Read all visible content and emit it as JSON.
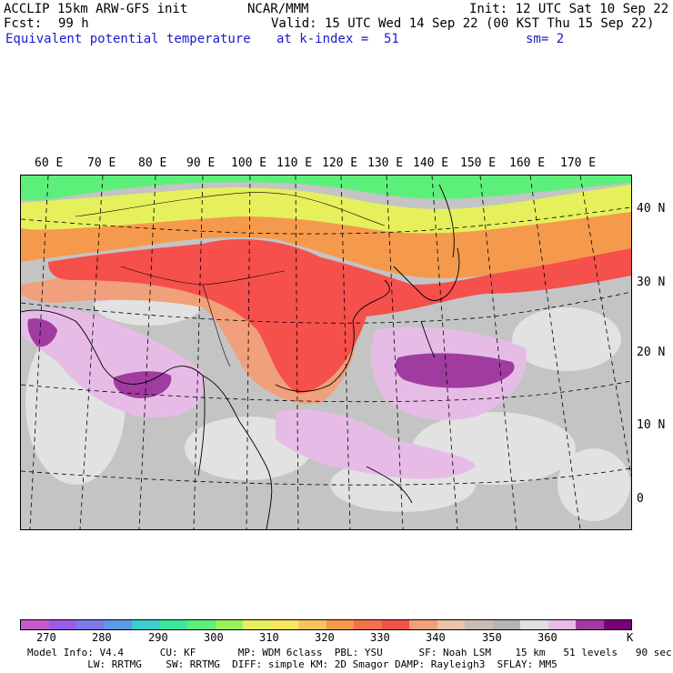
{
  "header": {
    "model": "ACCLIP 15km ARW-GFS init",
    "org": "NCAR/MMM",
    "init": "Init: 12 UTC Sat 10 Sep 22",
    "fcst_label": "Fcst:",
    "fcst_value": "99 h",
    "valid": "Valid: 15 UTC Wed 14 Sep 22 (00 KST Thu 15 Sep 22)",
    "field": "Equivalent potential temperature",
    "level": "at k-index =  51",
    "smooth": "sm= 2"
  },
  "lon_labels": [
    "60 E",
    "70 E",
    "80 E",
    "90 E",
    "100 E",
    "110 E",
    "120 E",
    "130 E",
    "140 E",
    "150 E",
    "160 E",
    "170 E"
  ],
  "lat_labels": [
    "40 N",
    "30 N",
    "20 N",
    "10 N",
    "0"
  ],
  "colorbar": {
    "colors": [
      "#c45ccc",
      "#9a5ce6",
      "#7a7ae6",
      "#5c9ae6",
      "#3ccccc",
      "#3ce69a",
      "#5cf07a",
      "#9af05c",
      "#e6f05c",
      "#f5e65c",
      "#f5c45c",
      "#f59a4c",
      "#f5704c",
      "#f5504c",
      "#f0a07a",
      "#ebc4a8",
      "#c8bcb4",
      "#b4b4b4",
      "#e0e0e0",
      "#e6bce6",
      "#a03ca0",
      "#7a007a"
    ],
    "tick_labels": [
      "270",
      "280",
      "290",
      "300",
      "310",
      "320",
      "330",
      "340",
      "350",
      "360"
    ],
    "unit": "K"
  },
  "model_info": {
    "line1": "Model Info: V4.4      CU: KF       MP: WDM 6class  PBL: YSU      SF: Noah LSM    15 km   51 levels   90 sec",
    "line2": "          LW: RRTMG    SW: RRTMG  DIFF: simple KM: 2D Smagor DAMP: Rayleigh3  SFLAY: MM5"
  },
  "colors": {
    "header_blue": "#1a1acc",
    "warm": "#f5504c",
    "orange": "#f59a4c",
    "green": "#5cf07a",
    "purple": "#a03ca0",
    "lilac": "#e6bce6",
    "gray": "#c4c4c4"
  }
}
